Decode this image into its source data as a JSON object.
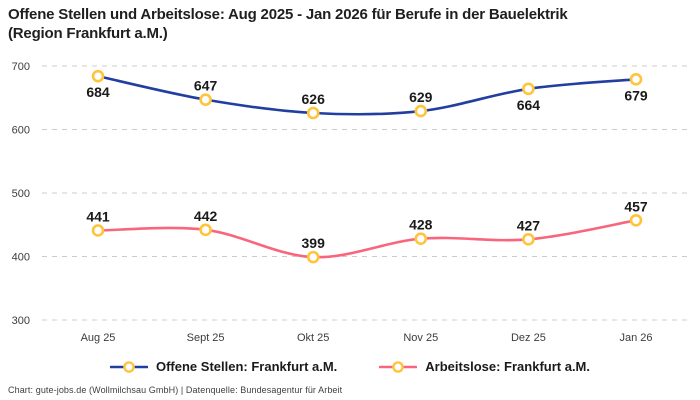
{
  "header": {
    "title_line1": "Offene Stellen und Arbeitslose: Aug 2025 - Jan 2026 für Berufe in der Bauelektrik",
    "title_line2": "(Region Frankfurt a.M.)"
  },
  "chart_data": {
    "type": "line",
    "title": "Offene Stellen und Arbeitslose: Aug 2025 - Jan 2026 für Berufe in der Bauelektrik (Region Frankfurt a.M.)",
    "categories": [
      "Aug 25",
      "Sept 25",
      "Okt 25",
      "Nov 25",
      "Dez 25",
      "Jan 26"
    ],
    "series": [
      {
        "name": "Offene Stellen: Frankfurt a.M.",
        "values": [
          684,
          647,
          626,
          629,
          664,
          679
        ],
        "color": "#213ea0",
        "label_positions": [
          "below",
          "above",
          "above",
          "above",
          "below",
          "below"
        ]
      },
      {
        "name": "Arbeitslose: Frankfurt a.M.",
        "values": [
          441,
          442,
          399,
          428,
          427,
          457
        ],
        "color": "#f8657c",
        "label_positions": [
          "above",
          "above",
          "above",
          "above",
          "above",
          "above"
        ]
      }
    ],
    "marker_style": {
      "fill": "#ffffff",
      "stroke": "#ffc43c"
    },
    "ylim": [
      300,
      700
    ],
    "yticks": [
      300,
      400,
      500,
      600,
      700
    ],
    "grid": "horizontal-dashed",
    "legend_position": "bottom-center",
    "xlabel": "",
    "ylabel": ""
  },
  "footer": {
    "credit": "Chart: gute-jobs.de (Wollmilchsau GmbH) | Datenquelle: Bundesagentur für Arbeit"
  },
  "colors": {
    "background": "#ffffff",
    "grid": "#cccccc",
    "axis_text": "#3c3c3c",
    "data_label": "#1a1a1a",
    "title": "#1f1f1f",
    "footer_text": "#404040"
  }
}
